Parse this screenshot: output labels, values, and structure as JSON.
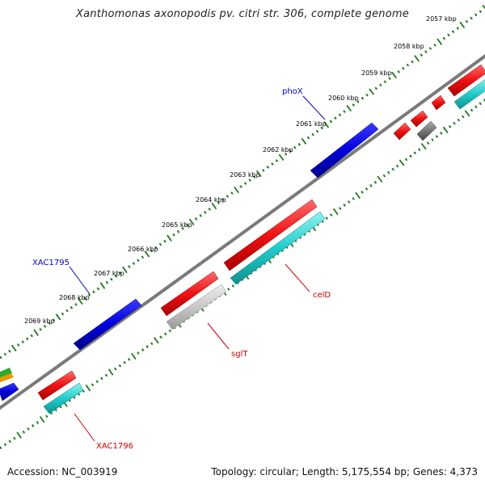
{
  "title": "Xanthomonas axonopodis pv. citri str. 306, complete genome",
  "footer": {
    "accession": "Accession: NC_003919",
    "topology": "Topology: circular; Length: 5,175,554 bp; Genes: 4,373"
  },
  "colors": {
    "tick": "#1f7a1f",
    "backbone": "#7a7a7a",
    "forward_gene": "#0000dd",
    "reverse_gene": "#ee1111",
    "cds": "#22cccc",
    "pseudo": "#c8c8c8",
    "dark_feature": "#777777",
    "forward_label": "#0000cc",
    "reverse_label": "#cc0000"
  },
  "ruler": {
    "labels": [
      "2057 kbp",
      "2058 kbp",
      "2059 kbp",
      "2060 kbp",
      "2061 kbp",
      "2062 kbp",
      "2063 kbp",
      "2064 kbp",
      "2065 kbp",
      "2066 kbp",
      "2067 kbp",
      "2068 kbp",
      "2069 kbp"
    ]
  },
  "gene_labels": [
    {
      "name": "phoX",
      "strand": "forward"
    },
    {
      "name": "XAC1795",
      "strand": "forward"
    },
    {
      "name": "celD",
      "strand": "reverse"
    },
    {
      "name": "sglT",
      "strand": "reverse"
    },
    {
      "name": "XAC1796",
      "strand": "reverse"
    }
  ]
}
